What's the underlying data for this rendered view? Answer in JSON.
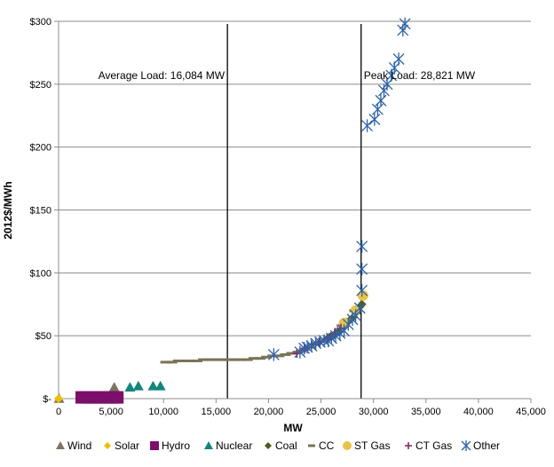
{
  "chart_data": {
    "type": "scatter",
    "title": "",
    "xlabel": "MW",
    "ylabel": "2012$/MWh",
    "xlim": [
      0,
      45000
    ],
    "ylim": [
      0,
      300
    ],
    "grid": "horizontal",
    "legend_position": "bottom",
    "x_ticks": [
      0,
      5000,
      10000,
      15000,
      20000,
      25000,
      30000,
      35000,
      40000,
      45000
    ],
    "x_tick_labels": [
      "0",
      "5,000",
      "10,000",
      "15,000",
      "20,000",
      "25,000",
      "30,000",
      "35,000",
      "40,000",
      "45,000"
    ],
    "y_ticks": [
      0,
      50,
      100,
      150,
      200,
      250,
      300
    ],
    "y_tick_labels": [
      "$-",
      "$50",
      "$100",
      "$150",
      "$200",
      "$250",
      "$300"
    ],
    "annotations": [
      {
        "label": "Average Load: 16,084  MW",
        "x": 16084
      },
      {
        "label": "Peak Load: 28,821  MW",
        "x": 28821
      }
    ],
    "series": [
      {
        "name": "Wind",
        "marker": "triangle",
        "color": "#7f7361",
        "points": [
          [
            50,
            0
          ],
          [
            5300,
            9
          ]
        ]
      },
      {
        "name": "Solar",
        "marker": "diamond",
        "color": "#e6c200",
        "points": [
          [
            0,
            0
          ]
        ]
      },
      {
        "name": "Hydro",
        "marker": "square",
        "color": "#7b0f6b",
        "points": [
          [
            2200,
            1
          ],
          [
            2600,
            1
          ],
          [
            3000,
            1
          ],
          [
            3400,
            1
          ],
          [
            3800,
            1
          ],
          [
            4200,
            1
          ],
          [
            4600,
            1
          ],
          [
            5000,
            1
          ],
          [
            5400,
            1
          ],
          [
            5600,
            1
          ]
        ]
      },
      {
        "name": "Nuclear",
        "marker": "triangle",
        "color": "#13857c",
        "points": [
          [
            6800,
            9
          ],
          [
            7600,
            10
          ],
          [
            9000,
            10
          ],
          [
            9700,
            10
          ]
        ]
      },
      {
        "name": "Coal",
        "marker": "diamond",
        "color": "#4b5e1a",
        "points": [
          [
            25800,
            49
          ],
          [
            26300,
            51
          ],
          [
            26700,
            53
          ],
          [
            27300,
            58
          ],
          [
            27700,
            62
          ],
          [
            28100,
            65
          ],
          [
            28400,
            70
          ],
          [
            28700,
            73
          ],
          [
            28900,
            75
          ]
        ]
      },
      {
        "name": "CC",
        "marker": "dash",
        "color": "#7a7457",
        "points": [
          [
            10200,
            29
          ],
          [
            10800,
            29
          ],
          [
            11400,
            30
          ],
          [
            12000,
            30
          ],
          [
            12600,
            30
          ],
          [
            13200,
            30
          ],
          [
            13800,
            31
          ],
          [
            14400,
            31
          ],
          [
            15000,
            31
          ],
          [
            15600,
            31
          ],
          [
            16200,
            31
          ],
          [
            16800,
            31
          ],
          [
            17400,
            31
          ],
          [
            18000,
            31
          ],
          [
            18600,
            32
          ],
          [
            19200,
            32
          ],
          [
            19800,
            33
          ],
          [
            20400,
            34
          ],
          [
            21000,
            34
          ],
          [
            21600,
            35
          ],
          [
            22200,
            36
          ],
          [
            22800,
            37
          ],
          [
            23400,
            39
          ],
          [
            24000,
            41
          ],
          [
            24600,
            44
          ],
          [
            25200,
            46
          ],
          [
            25800,
            48
          ],
          [
            26400,
            52
          ],
          [
            27000,
            58
          ],
          [
            27600,
            63
          ],
          [
            28200,
            70
          ]
        ]
      },
      {
        "name": "ST Gas",
        "marker": "circle",
        "color": "#e8c24a",
        "points": [
          [
            27200,
            60
          ],
          [
            28300,
            70
          ],
          [
            29000,
            82
          ]
        ]
      },
      {
        "name": "CT Gas",
        "marker": "plus",
        "color": "#8b2a6b",
        "points": [
          [
            22700,
            36
          ],
          [
            23500,
            40
          ],
          [
            24100,
            43
          ],
          [
            24800,
            45
          ],
          [
            25600,
            48
          ],
          [
            26300,
            52
          ],
          [
            26900,
            56
          ]
        ]
      },
      {
        "name": "Other",
        "marker": "asterisk",
        "color": "#2e62a6",
        "points": [
          [
            20500,
            35
          ],
          [
            23000,
            37
          ],
          [
            23400,
            40
          ],
          [
            23700,
            41
          ],
          [
            24100,
            42
          ],
          [
            24500,
            44
          ],
          [
            24900,
            45
          ],
          [
            25300,
            46
          ],
          [
            25700,
            46
          ],
          [
            26000,
            48
          ],
          [
            26400,
            50
          ],
          [
            26800,
            52
          ],
          [
            27200,
            54
          ],
          [
            27600,
            59
          ],
          [
            28000,
            63
          ],
          [
            28300,
            66
          ],
          [
            28700,
            72
          ],
          [
            28900,
            86
          ],
          [
            28900,
            103
          ],
          [
            28900,
            121
          ],
          [
            29400,
            217
          ],
          [
            30100,
            222
          ],
          [
            30400,
            230
          ],
          [
            30700,
            237
          ],
          [
            31000,
            245
          ],
          [
            31300,
            250
          ],
          [
            31700,
            257
          ],
          [
            32000,
            263
          ],
          [
            32400,
            270
          ],
          [
            32800,
            293
          ],
          [
            33000,
            298
          ]
        ]
      }
    ]
  }
}
